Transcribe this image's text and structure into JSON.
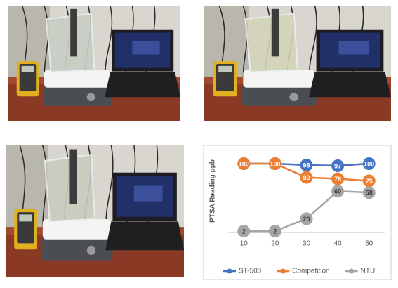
{
  "chart_data": {
    "type": "line",
    "y_label": "PTSA Reading ppb",
    "categories": [
      "10",
      "20",
      "30",
      "40",
      "50"
    ],
    "ylim": [
      0,
      100
    ],
    "legend": "bottom",
    "series": [
      {
        "name": "ST-500",
        "color": "#4472c4",
        "values": [
          100,
          100,
          98,
          97,
          100
        ]
      },
      {
        "name": "Competition",
        "color": "#ed7d31",
        "values": [
          100,
          100,
          80,
          78,
          75
        ]
      },
      {
        "name": "NTU",
        "color": "#a5a5a5",
        "values": [
          2,
          2,
          20,
          60,
          58
        ]
      }
    ]
  }
}
